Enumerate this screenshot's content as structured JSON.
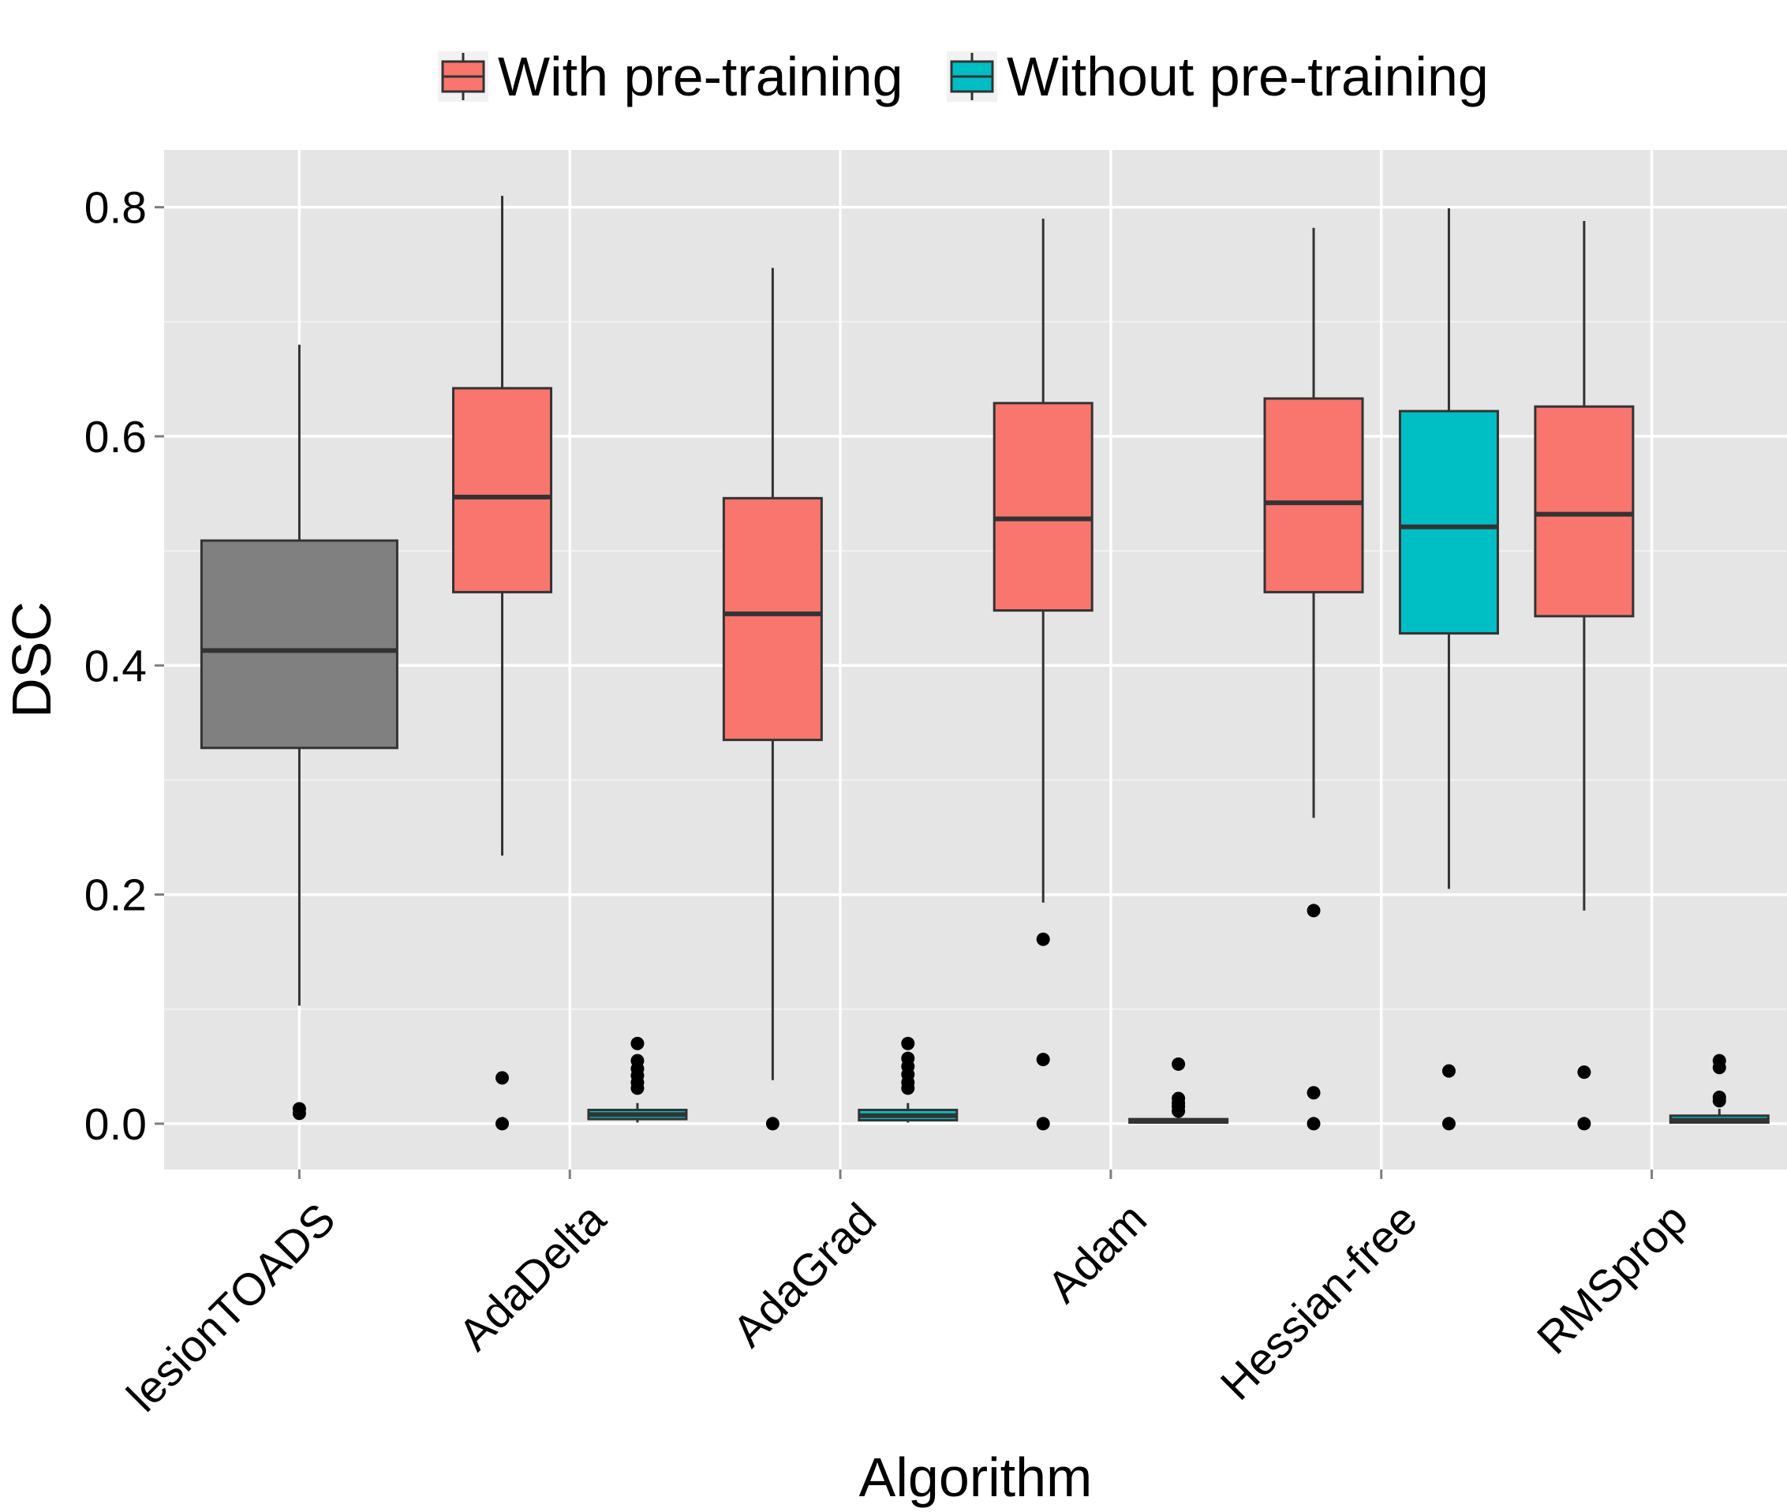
{
  "chart_data": {
    "type": "boxplot",
    "xlabel": "Algorithm",
    "ylabel": "DSC",
    "ylim": [
      -0.04,
      0.85
    ],
    "yticks": [
      0.0,
      0.2,
      0.4,
      0.6,
      0.8
    ],
    "ytick_labels": [
      "0.0",
      "0.2",
      "0.4",
      "0.6",
      "0.8"
    ],
    "grid": true,
    "legend_position": "top",
    "categories": [
      "lesionTOADS",
      "AdaDelta",
      "AdaGrad",
      "Adam",
      "Hessian-free",
      "RMSprop"
    ],
    "series": [
      {
        "name": "With pre-training",
        "color": "#F8766D"
      },
      {
        "name": "Without pre-training",
        "color": "#00BFC4"
      }
    ],
    "baseline_color": "#808080",
    "boxes": [
      {
        "category": "lesionTOADS",
        "group": "baseline",
        "whisker_low": 0.103,
        "q1": 0.328,
        "median": 0.413,
        "q3": 0.509,
        "whisker_high": 0.68,
        "outliers": [
          0.009,
          0.013
        ]
      },
      {
        "category": "AdaDelta",
        "group": "With pre-training",
        "whisker_low": 0.234,
        "q1": 0.464,
        "median": 0.547,
        "q3": 0.642,
        "whisker_high": 0.81,
        "outliers": [
          0.0,
          0.04
        ]
      },
      {
        "category": "AdaDelta",
        "group": "Without pre-training",
        "whisker_low": 0.001,
        "q1": 0.004,
        "median": 0.008,
        "q3": 0.012,
        "whisker_high": 0.018,
        "outliers": [
          0.031,
          0.036,
          0.042,
          0.048,
          0.055,
          0.07
        ]
      },
      {
        "category": "AdaGrad",
        "group": "With pre-training",
        "whisker_low": 0.038,
        "q1": 0.335,
        "median": 0.445,
        "q3": 0.546,
        "whisker_high": 0.747,
        "outliers": [
          0.0
        ]
      },
      {
        "category": "AdaGrad",
        "group": "Without pre-training",
        "whisker_low": 0.001,
        "q1": 0.003,
        "median": 0.007,
        "q3": 0.012,
        "whisker_high": 0.018,
        "outliers": [
          0.031,
          0.036,
          0.043,
          0.05,
          0.057,
          0.07
        ]
      },
      {
        "category": "Adam",
        "group": "With pre-training",
        "whisker_low": 0.193,
        "q1": 0.448,
        "median": 0.528,
        "q3": 0.629,
        "whisker_high": 0.79,
        "outliers": [
          0.0,
          0.056,
          0.161
        ]
      },
      {
        "category": "Adam",
        "group": "Without pre-training",
        "whisker_low": 0.0,
        "q1": 0.001,
        "median": 0.002,
        "q3": 0.004,
        "whisker_high": 0.008,
        "outliers": [
          0.011,
          0.015,
          0.018,
          0.022,
          0.052
        ]
      },
      {
        "category": "Hessian-free",
        "group": "With pre-training",
        "whisker_low": 0.267,
        "q1": 0.464,
        "median": 0.542,
        "q3": 0.633,
        "whisker_high": 0.782,
        "outliers": [
          0.0,
          0.027,
          0.186
        ]
      },
      {
        "category": "Hessian-free",
        "group": "Without pre-training",
        "whisker_low": 0.205,
        "q1": 0.428,
        "median": 0.521,
        "q3": 0.622,
        "whisker_high": 0.799,
        "outliers": [
          0.0,
          0.046
        ]
      },
      {
        "category": "RMSprop",
        "group": "With pre-training",
        "whisker_low": 0.186,
        "q1": 0.443,
        "median": 0.532,
        "q3": 0.626,
        "whisker_high": 0.788,
        "outliers": [
          0.0,
          0.045
        ]
      },
      {
        "category": "RMSprop",
        "group": "Without pre-training",
        "whisker_low": 0.0,
        "q1": 0.001,
        "median": 0.003,
        "q3": 0.007,
        "whisker_high": 0.013,
        "outliers": [
          0.02,
          0.023,
          0.049,
          0.055
        ]
      }
    ]
  }
}
